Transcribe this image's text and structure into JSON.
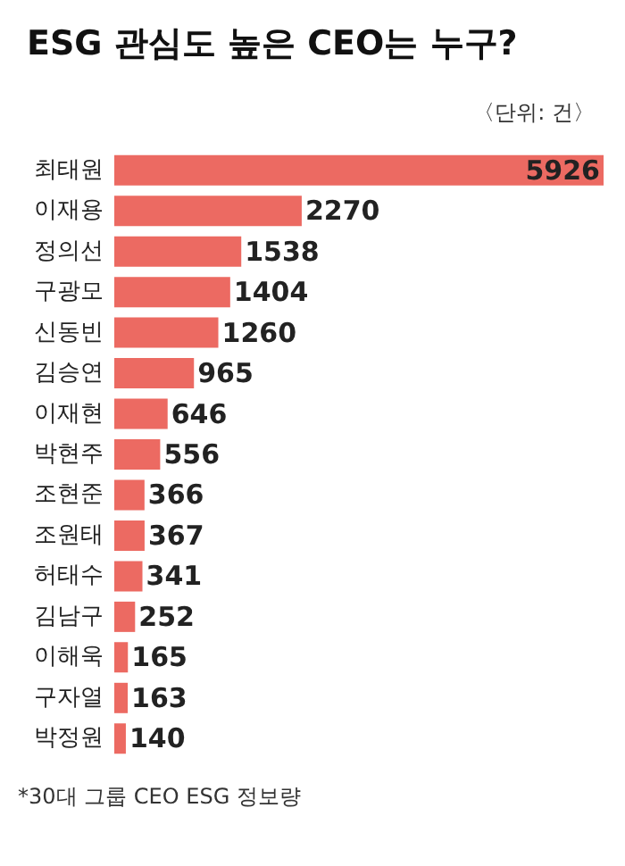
{
  "chart_data": {
    "type": "bar",
    "orientation": "horizontal",
    "title": "ESG 관심도 높은 CEO는 누구?",
    "subtitle": "〈단위: 건〉",
    "categories": [
      "최태원",
      "이재용",
      "정의선",
      "구광모",
      "신동빈",
      "김승연",
      "이재현",
      "박현주",
      "조현준",
      "조원태",
      "허태수",
      "김남구",
      "이해욱",
      "구자열",
      "박정원"
    ],
    "values": [
      5926,
      2270,
      1538,
      1404,
      1260,
      965,
      646,
      556,
      366,
      367,
      341,
      252,
      165,
      163,
      140
    ],
    "color": "#ec6a62",
    "data_labels": true,
    "annotations": [
      "*30대 그룹 CEO ESG 정보량"
    ]
  }
}
